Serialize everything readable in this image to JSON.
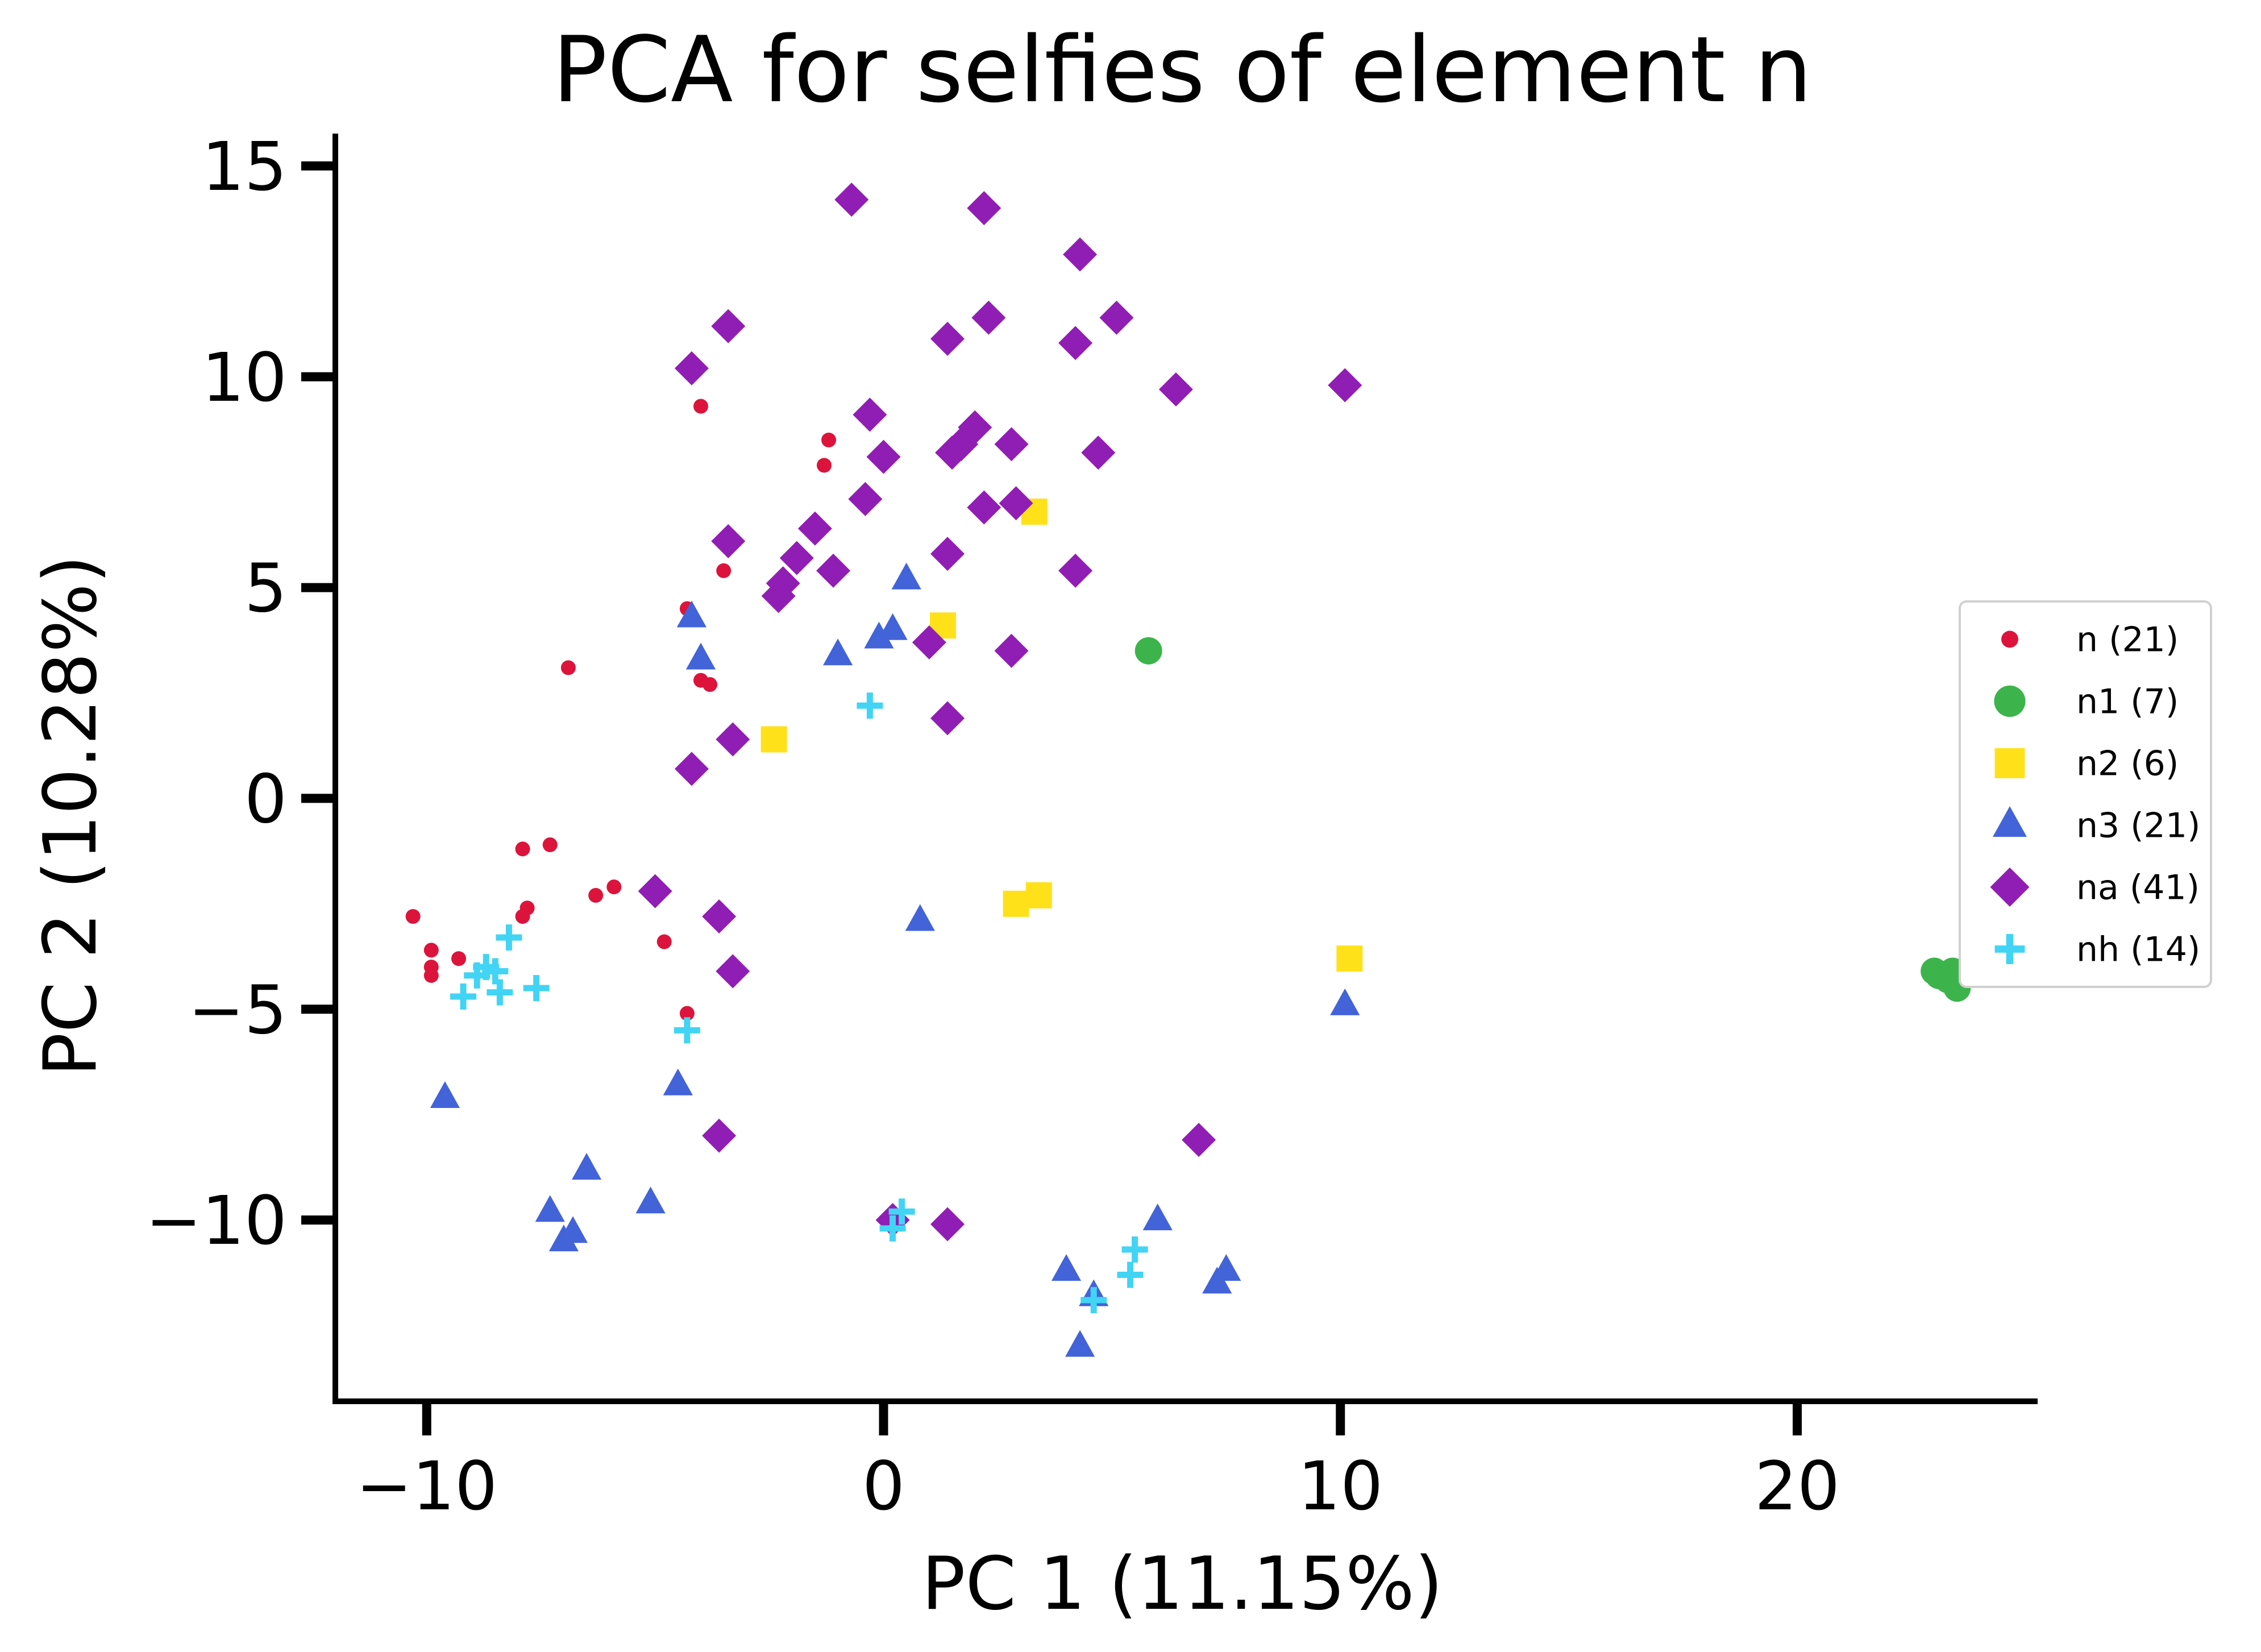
{
  "chart_data": {
    "type": "scatter",
    "title": "PCA for selfies of element n",
    "xlabel": "PC 1 (11.15%)",
    "ylabel": "PC 2 (10.28%)",
    "xlim": [
      -12,
      25.2
    ],
    "ylim": [
      -14.3,
      15.7
    ],
    "xticks": [
      -10,
      0,
      10,
      20
    ],
    "xtick_labels": [
      "−10",
      "0",
      "10",
      "20"
    ],
    "yticks": [
      -10,
      -5,
      0,
      5,
      10,
      15
    ],
    "ytick_labels": [
      "−10",
      "−5",
      "0",
      "5",
      "10",
      "15"
    ],
    "grid": false,
    "legend_position": "right",
    "series": [
      {
        "name": "n (21)",
        "marker": "circle-small",
        "color": "#dc143c",
        "points": [
          [
            -4.0,
            9.3
          ],
          [
            -1.2,
            8.5
          ],
          [
            -1.3,
            7.9
          ],
          [
            -3.5,
            5.4
          ],
          [
            -4.3,
            4.5
          ],
          [
            -4.0,
            2.8
          ],
          [
            -3.8,
            2.7
          ],
          [
            -6.9,
            3.1
          ],
          [
            -7.9,
            -1.2
          ],
          [
            -7.3,
            -1.1
          ],
          [
            -7.8,
            -2.6
          ],
          [
            -7.9,
            -2.8
          ],
          [
            -6.3,
            -2.3
          ],
          [
            -5.9,
            -2.1
          ],
          [
            -10.3,
            -2.8
          ],
          [
            -9.9,
            -3.6
          ],
          [
            -9.9,
            -4.0
          ],
          [
            -9.9,
            -4.2
          ],
          [
            -9.3,
            -3.8
          ],
          [
            -4.8,
            -3.4
          ],
          [
            -4.3,
            -5.1
          ]
        ]
      },
      {
        "name": "n1 (7)",
        "marker": "circle",
        "color": "#3cb44b",
        "points": [
          [
            5.8,
            3.5
          ],
          [
            23.0,
            -4.1
          ],
          [
            23.2,
            -4.2
          ],
          [
            23.4,
            -4.1
          ],
          [
            23.5,
            -4.5
          ],
          [
            23.3,
            -4.3
          ],
          [
            23.1,
            -4.2
          ]
        ]
      },
      {
        "name": "n2 (6)",
        "marker": "square",
        "color": "#ffe119",
        "points": [
          [
            3.3,
            6.8
          ],
          [
            1.3,
            4.1
          ],
          [
            -2.4,
            1.4
          ],
          [
            2.9,
            -2.5
          ],
          [
            3.4,
            -2.3
          ],
          [
            10.2,
            -3.8
          ]
        ]
      },
      {
        "name": "n3 (21)",
        "marker": "triangle",
        "color": "#4363d8",
        "points": [
          [
            -4.2,
            4.3
          ],
          [
            -4.0,
            3.3
          ],
          [
            -1.0,
            3.4
          ],
          [
            -0.1,
            3.8
          ],
          [
            0.2,
            4.0
          ],
          [
            0.5,
            5.2
          ],
          [
            0.8,
            -2.9
          ],
          [
            10.1,
            -4.9
          ],
          [
            -9.6,
            -7.1
          ],
          [
            -4.5,
            -6.8
          ],
          [
            -6.5,
            -8.8
          ],
          [
            -7.3,
            -9.8
          ],
          [
            -7.0,
            -10.5
          ],
          [
            -6.8,
            -10.3
          ],
          [
            -5.1,
            -9.6
          ],
          [
            4.0,
            -11.2
          ],
          [
            4.6,
            -11.8
          ],
          [
            4.3,
            -13.0
          ],
          [
            6.0,
            -10.0
          ],
          [
            7.3,
            -11.5
          ],
          [
            7.5,
            -11.2
          ]
        ]
      },
      {
        "name": "na (41)",
        "marker": "diamond",
        "color": "#911eb4",
        "points": [
          [
            -0.7,
            14.2
          ],
          [
            2.2,
            14.0
          ],
          [
            4.3,
            12.9
          ],
          [
            2.3,
            11.4
          ],
          [
            5.1,
            11.4
          ],
          [
            -3.4,
            11.2
          ],
          [
            -4.2,
            10.2
          ],
          [
            1.4,
            10.9
          ],
          [
            4.2,
            10.8
          ],
          [
            6.4,
            9.7
          ],
          [
            10.1,
            9.8
          ],
          [
            -0.3,
            9.1
          ],
          [
            0.0,
            8.1
          ],
          [
            2.0,
            8.8
          ],
          [
            1.7,
            8.4
          ],
          [
            1.5,
            8.2
          ],
          [
            2.8,
            8.4
          ],
          [
            4.7,
            8.2
          ],
          [
            -0.4,
            7.1
          ],
          [
            2.2,
            6.9
          ],
          [
            2.9,
            7.0
          ],
          [
            -3.4,
            6.1
          ],
          [
            -1.5,
            6.4
          ],
          [
            -1.9,
            5.7
          ],
          [
            -2.2,
            5.1
          ],
          [
            -2.3,
            4.8
          ],
          [
            -1.1,
            5.4
          ],
          [
            1.4,
            5.8
          ],
          [
            4.2,
            5.4
          ],
          [
            1.0,
            3.7
          ],
          [
            2.8,
            3.5
          ],
          [
            1.4,
            1.9
          ],
          [
            -3.3,
            1.4
          ],
          [
            -4.2,
            0.7
          ],
          [
            -5.0,
            -2.2
          ],
          [
            -3.6,
            -2.8
          ],
          [
            -3.3,
            -4.1
          ],
          [
            -3.6,
            -8.0
          ],
          [
            6.9,
            -8.1
          ],
          [
            0.2,
            -10.0
          ],
          [
            1.4,
            -10.1
          ]
        ]
      },
      {
        "name": "nh (14)",
        "marker": "plus",
        "color": "#42d4f4",
        "points": [
          [
            -0.3,
            2.2
          ],
          [
            -8.2,
            -3.3
          ],
          [
            -8.7,
            -4.0
          ],
          [
            -8.5,
            -4.1
          ],
          [
            -8.9,
            -4.2
          ],
          [
            -9.2,
            -4.7
          ],
          [
            -8.4,
            -4.6
          ],
          [
            -7.6,
            -4.5
          ],
          [
            -4.3,
            -5.5
          ],
          [
            0.4,
            -9.8
          ],
          [
            0.2,
            -10.2
          ],
          [
            5.5,
            -10.7
          ],
          [
            5.4,
            -11.3
          ],
          [
            4.6,
            -11.9
          ]
        ]
      }
    ]
  }
}
